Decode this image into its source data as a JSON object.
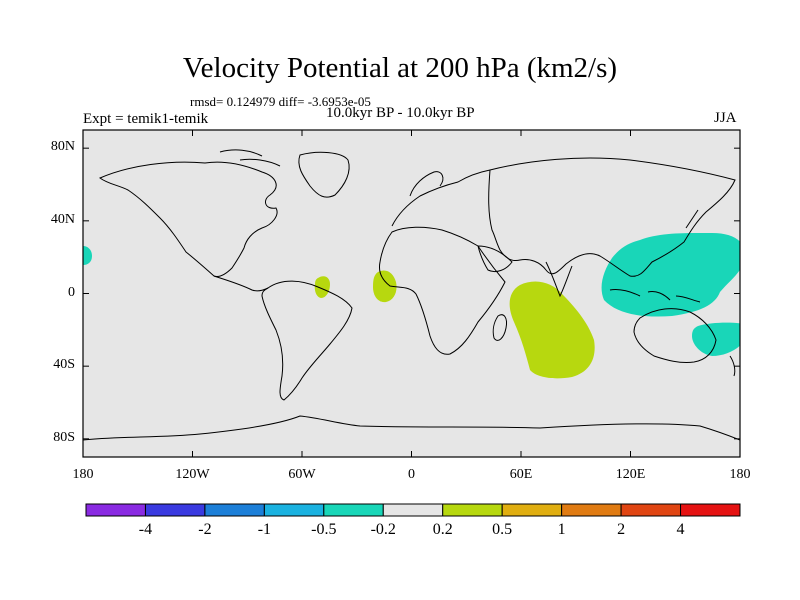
{
  "title": "Velocity Potential at 200 hPa (km2/s)",
  "stats": "rmsd= 0.124979 diff= -3.6953e-05",
  "experiment": "Expt = temik1-temik",
  "period": "10.0kyr BP - 10.0kyr BP",
  "season": "JJA",
  "chart_data": {
    "type": "map",
    "projection": "cylindrical-equidistant",
    "lon_range": [
      -180,
      180
    ],
    "lat_range": [
      -90,
      90
    ],
    "x_ticks": [
      {
        "label": "180",
        "lon": -180
      },
      {
        "label": "120W",
        "lon": -120
      },
      {
        "label": "60W",
        "lon": -60
      },
      {
        "label": "0",
        "lon": 0
      },
      {
        "label": "60E",
        "lon": 60
      },
      {
        "label": "120E",
        "lon": 120
      },
      {
        "label": "180",
        "lon": 180
      }
    ],
    "y_ticks": [
      {
        "label": "80N",
        "lat": 80
      },
      {
        "label": "40N",
        "lat": 40
      },
      {
        "label": "0",
        "lat": 0
      },
      {
        "label": "40S",
        "lat": -40
      },
      {
        "label": "80S",
        "lat": -80
      }
    ],
    "colorbar": {
      "colors": [
        "#8a2be2",
        "#3a3ae0",
        "#1c7fd8",
        "#1ab2e0",
        "#19d6b8",
        "#e6e6e6",
        "#b7d80f",
        "#e0ae10",
        "#e07b12",
        "#e04512",
        "#e51212"
      ],
      "labels": [
        "-4",
        "-2",
        "-1",
        "-0.5",
        "-0.2",
        "0.2",
        "0.5",
        "1",
        "2",
        "4"
      ]
    },
    "anomaly_regions": [
      {
        "name": "west-pacific-negative",
        "category": "-0.5 to -0.2",
        "color": "#19d6b8",
        "approx_center": [
          140,
          15
        ]
      },
      {
        "name": "southwest-pacific-negative",
        "category": "-0.5 to -0.2",
        "color": "#19d6b8",
        "approx_center": [
          160,
          -20
        ]
      },
      {
        "name": "central-pacific-negative",
        "category": "-0.5 to -0.2",
        "color": "#19d6b8",
        "approx_center": [
          -178,
          22
        ]
      },
      {
        "name": "indian-ocean-positive",
        "category": "0.2 to 0.5",
        "color": "#b7d80f",
        "approx_center": [
          72,
          -25
        ]
      },
      {
        "name": "west-africa-positive",
        "category": "0.2 to 0.5",
        "color": "#b7d80f",
        "approx_center": [
          -15,
          5
        ]
      },
      {
        "name": "amazon-positive",
        "category": "0.2 to 0.5",
        "color": "#b7d80f",
        "approx_center": [
          -52,
          5
        ]
      }
    ]
  }
}
